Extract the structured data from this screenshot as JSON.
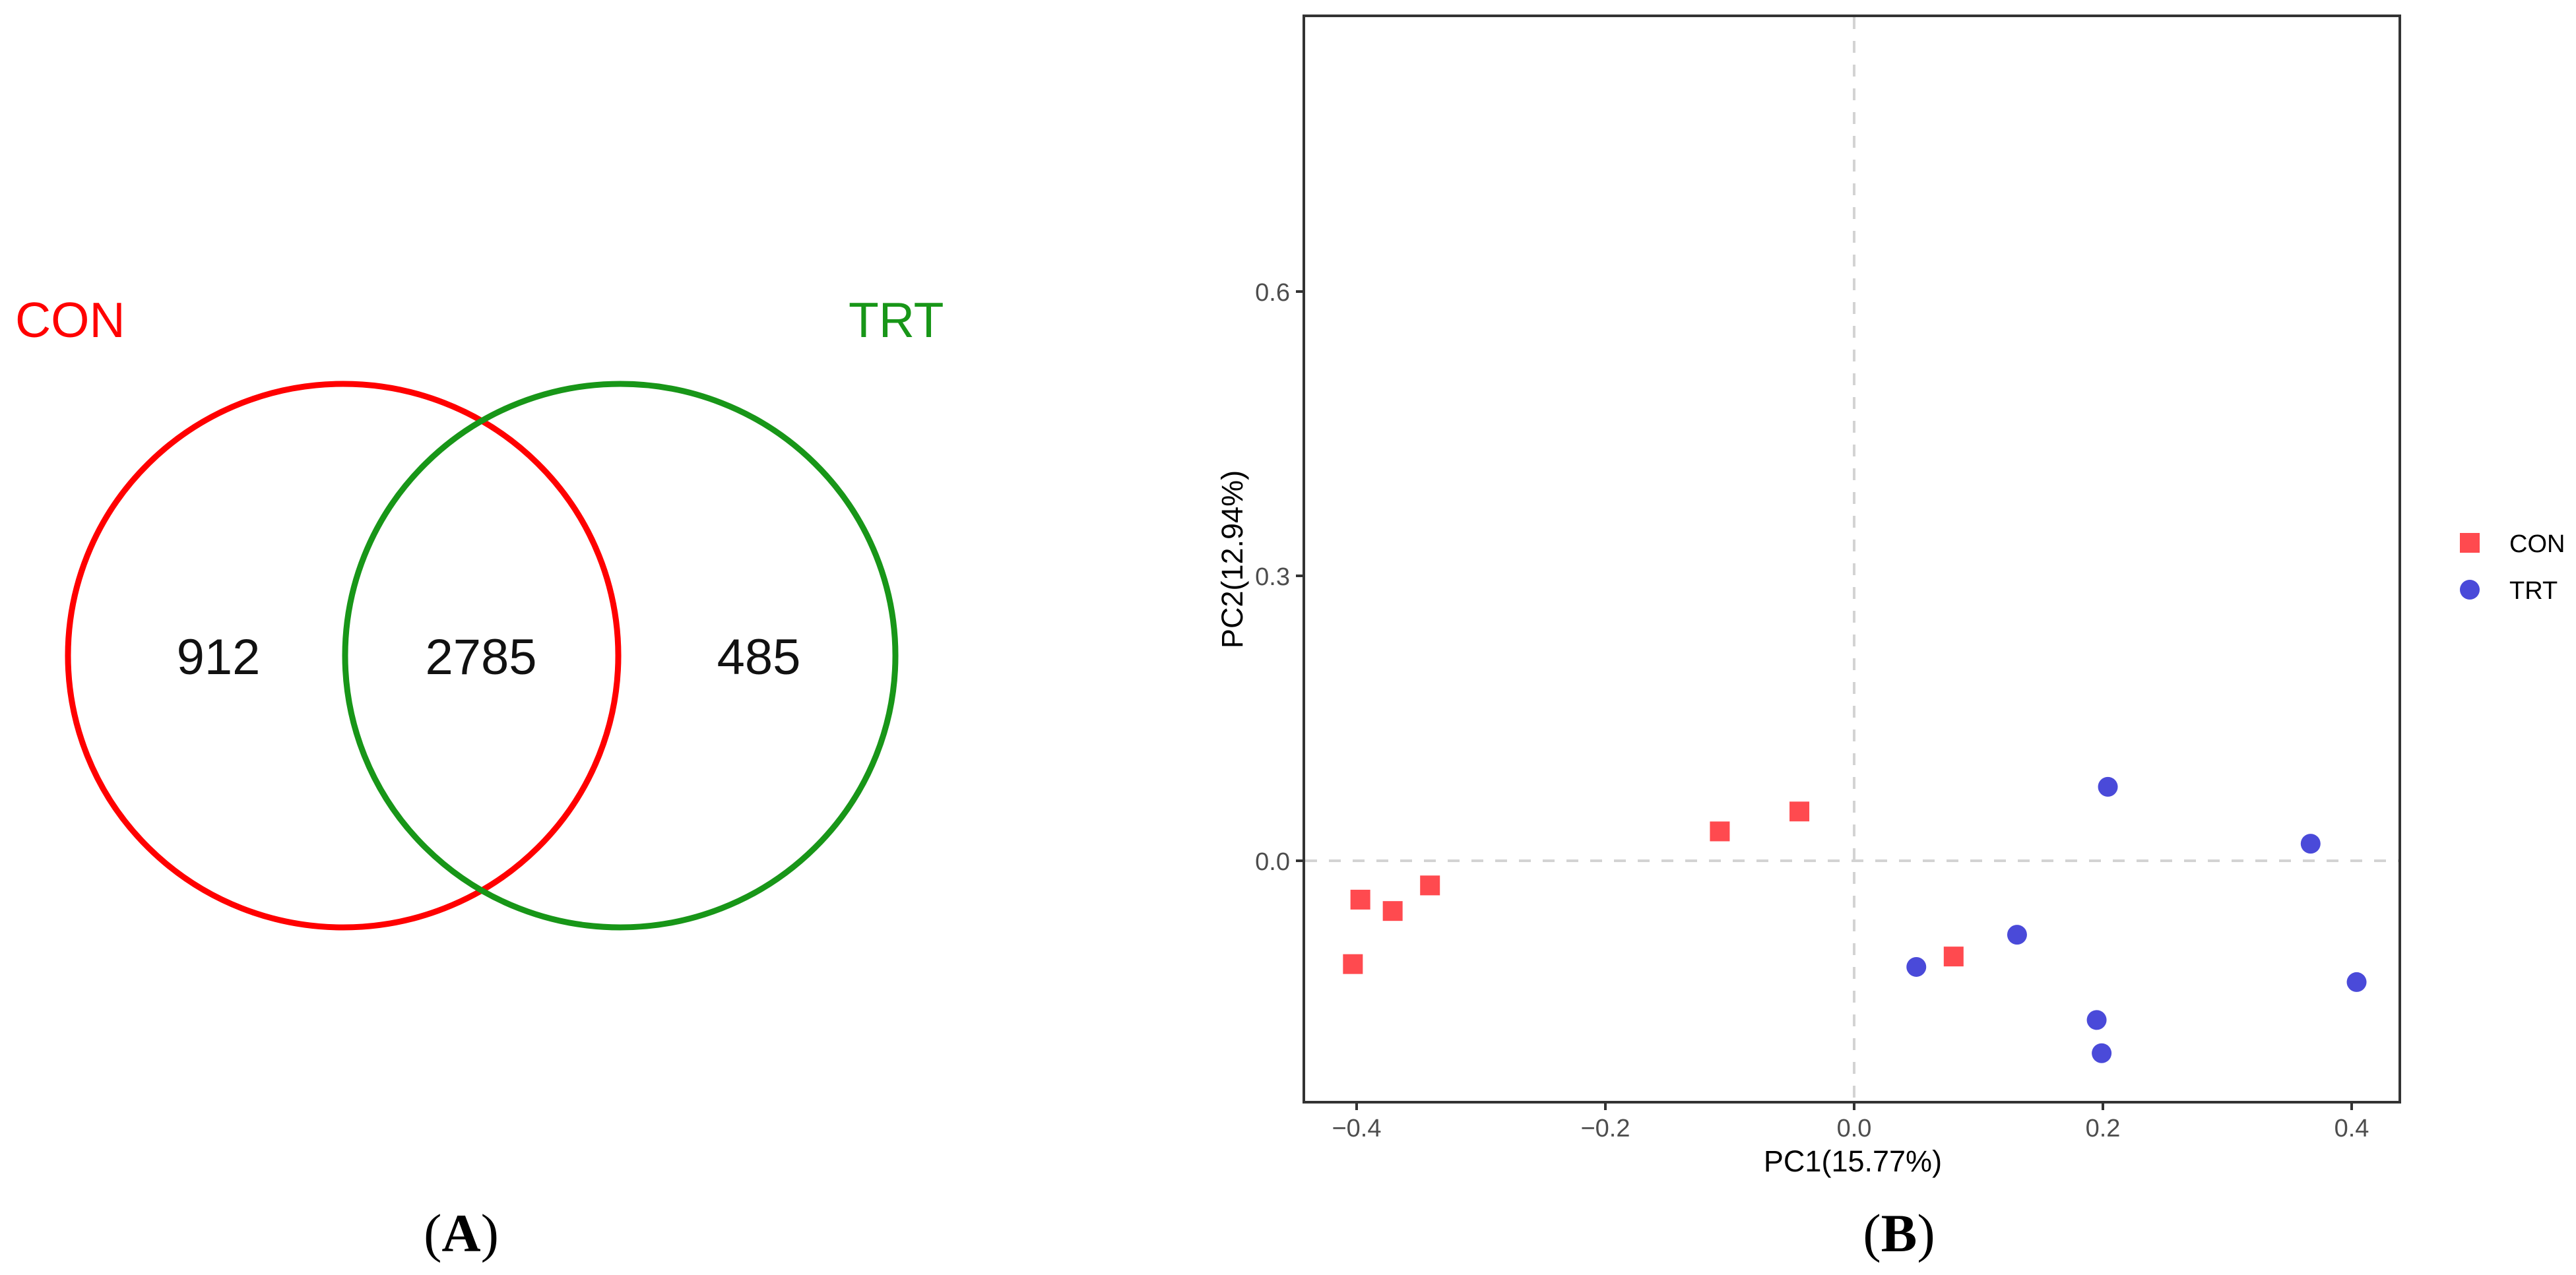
{
  "figure": {
    "panels": [
      {
        "id": "A",
        "label_open": "(",
        "label_letter": "A",
        "label_close": ")"
      },
      {
        "id": "B",
        "label_open": "(",
        "label_letter": "B",
        "label_close": ")"
      }
    ]
  },
  "venn": {
    "sets": [
      {
        "name": "CON",
        "color": "#ff0000"
      },
      {
        "name": "TRT",
        "color": "#189618"
      }
    ],
    "regions": {
      "con_only": "912",
      "shared": "2785",
      "trt_only": "485"
    }
  },
  "pca": {
    "xlabel": "PC1(15.77%)",
    "ylabel": "PC2(12.94%)",
    "xticks": [
      "−0.4",
      "−0.2",
      "0.0",
      "0.2",
      "0.4"
    ],
    "yticks": [
      "0.0",
      "0.3",
      "0.6"
    ],
    "legend": [
      {
        "label": "CON",
        "shape": "square",
        "color": "#ff4a4f"
      },
      {
        "label": "TRT",
        "shape": "circle",
        "color": "#4a4ad9"
      }
    ]
  },
  "chart_data": [
    {
      "type": "venn",
      "title": "",
      "sets": [
        "CON",
        "TRT"
      ],
      "values": {
        "CON_only": 912,
        "CON_and_TRT": 2785,
        "TRT_only": 485
      },
      "colors": {
        "CON": "#ff0000",
        "TRT": "#189618"
      },
      "panel": "A"
    },
    {
      "type": "scatter",
      "title": "",
      "xlabel": "PC1(15.77%)",
      "ylabel": "PC2(12.94%)",
      "xlim": [
        -0.44,
        0.44
      ],
      "ylim": [
        -0.255,
        0.89
      ],
      "xticks": [
        -0.4,
        -0.2,
        0.0,
        0.2,
        0.4
      ],
      "yticks": [
        0.0,
        0.3,
        0.6
      ],
      "grid": false,
      "reference_lines": {
        "x": 0.0,
        "y": 0.0,
        "style": "dashed",
        "color": "#d3d3d3"
      },
      "legend_position": "right",
      "panel": "B",
      "series": [
        {
          "name": "CON",
          "marker": "square",
          "color": "#ff4a4f",
          "points": [
            {
              "x": -0.403,
              "y": -0.109
            },
            {
              "x": -0.397,
              "y": -0.041
            },
            {
              "x": -0.371,
              "y": -0.053
            },
            {
              "x": -0.341,
              "y": -0.026
            },
            {
              "x": -0.108,
              "y": 0.031
            },
            {
              "x": -0.044,
              "y": 0.052
            },
            {
              "x": 0.08,
              "y": -0.101
            }
          ]
        },
        {
          "name": "TRT",
          "marker": "circle",
          "color": "#4a4ad9",
          "points": [
            {
              "x": 0.05,
              "y": -0.112
            },
            {
              "x": 0.131,
              "y": -0.078
            },
            {
              "x": 0.195,
              "y": -0.168
            },
            {
              "x": 0.199,
              "y": -0.203
            },
            {
              "x": 0.204,
              "y": 0.078
            },
            {
              "x": 0.367,
              "y": 0.018
            },
            {
              "x": 0.404,
              "y": -0.128
            }
          ]
        }
      ]
    }
  ]
}
